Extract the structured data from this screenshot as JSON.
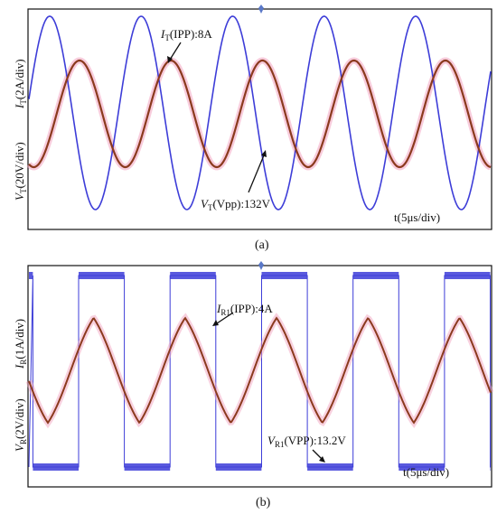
{
  "colors": {
    "current_trace": "#3d3dd8",
    "voltage_trace": "#8b3a1e",
    "voltage_glow": "#f2a3c0",
    "marker": "#5a78c8"
  },
  "chart_data": [
    {
      "type": "line",
      "panel_label": "(a)",
      "x_label": "t(5μs/div)",
      "y_labels": [
        {
          "symbol": "I",
          "sub": "T",
          "rest": "(2A/div)"
        },
        {
          "symbol": "V",
          "sub": "T",
          "rest": "(20V/div)"
        }
      ],
      "annotations": [
        {
          "symbol": "I",
          "sub": "T",
          "rest": "(IPP):8A"
        },
        {
          "symbol": "V",
          "sub": "T",
          "rest": "(Vpp):132V"
        }
      ],
      "series": [
        {
          "shape": "sine",
          "amplitude_pp": 8,
          "unit": "A",
          "period_us": 10.6,
          "color": "current"
        },
        {
          "shape": "sine",
          "amplitude_pp": 132,
          "unit": "V",
          "period_us": 10.6,
          "color": "voltage"
        }
      ]
    },
    {
      "type": "line",
      "panel_label": "(b)",
      "x_label": "t(5μs/div)",
      "y_labels": [
        {
          "symbol": "I",
          "sub": "R",
          "rest": "(1A/div)"
        },
        {
          "symbol": "V",
          "sub": "R",
          "rest": "(2V/div)"
        }
      ],
      "annotations": [
        {
          "symbol": "I",
          "sub": "R1",
          "rest": "(IPP):4A"
        },
        {
          "symbol": "V",
          "sub": "R1",
          "rest": "(VPP):13.2V"
        }
      ],
      "series": [
        {
          "shape": "square",
          "amplitude_pp": 13.2,
          "unit": "V",
          "period_us": 10.6,
          "color": "current"
        },
        {
          "shape": "triangular-sine",
          "amplitude_pp": 4,
          "unit": "A",
          "period_us": 10.6,
          "color": "voltage"
        }
      ]
    }
  ]
}
